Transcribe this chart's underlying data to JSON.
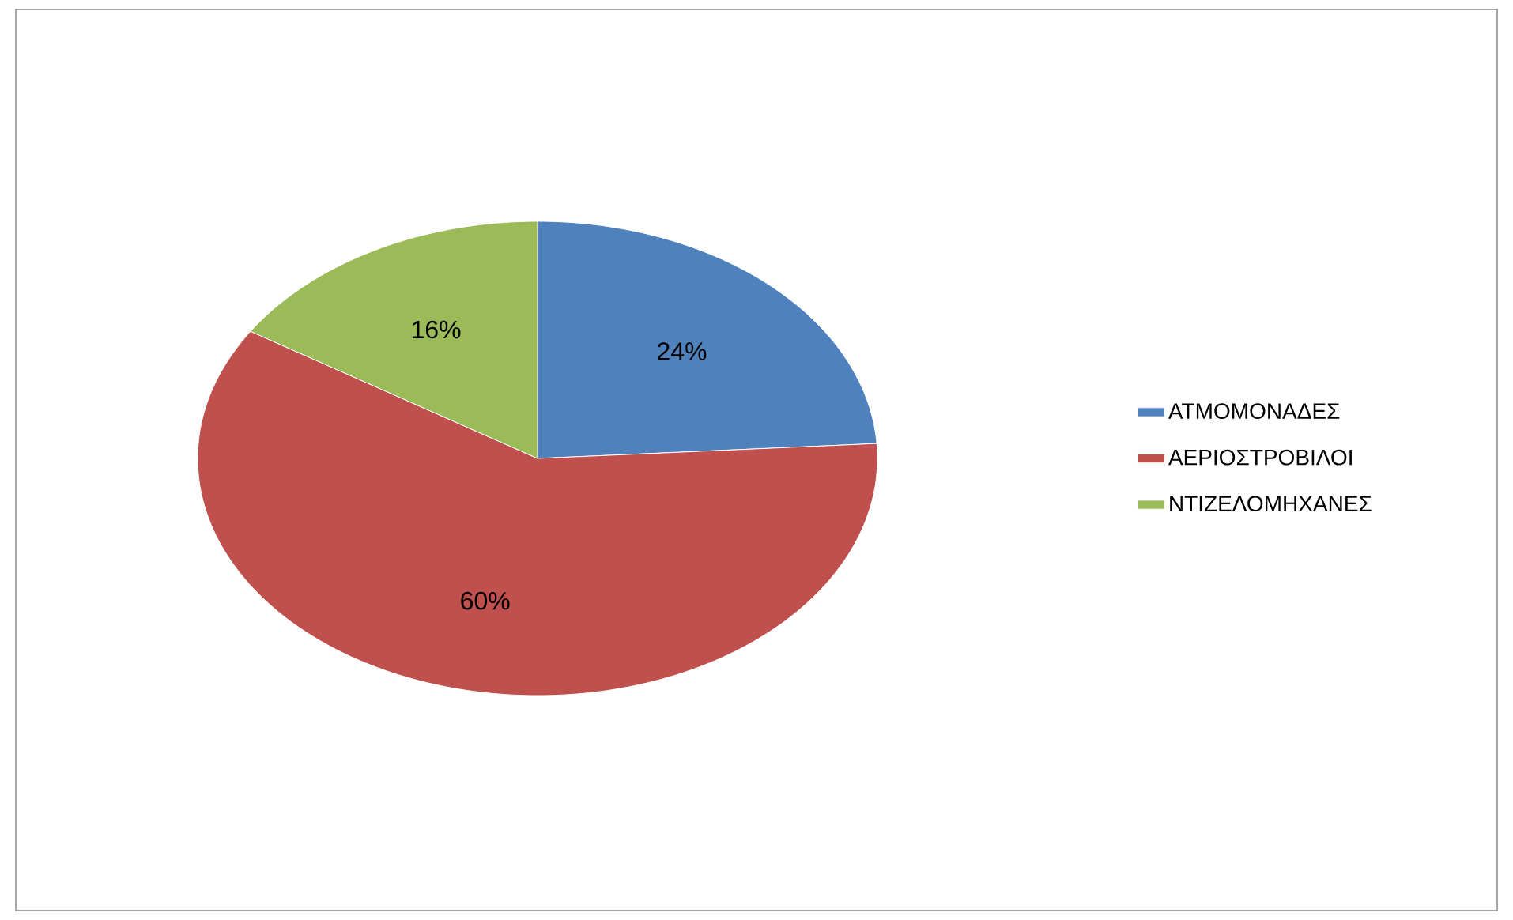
{
  "chart_data": {
    "type": "pie",
    "categories": [
      "ΑΤΜΟΜΟΝΑΔΕΣ",
      "ΑΕΡΙΟΣΤΡΟΒΙΛΟΙ",
      "ΝΤΙΖΕΛΟΜΗΧΑΝΕΣ"
    ],
    "values": [
      24,
      60,
      16
    ],
    "value_labels": [
      "24%",
      "60%",
      "16%"
    ],
    "colors": [
      "#4f81bd",
      "#c0504d",
      "#9bbb59"
    ],
    "legend": "right"
  }
}
